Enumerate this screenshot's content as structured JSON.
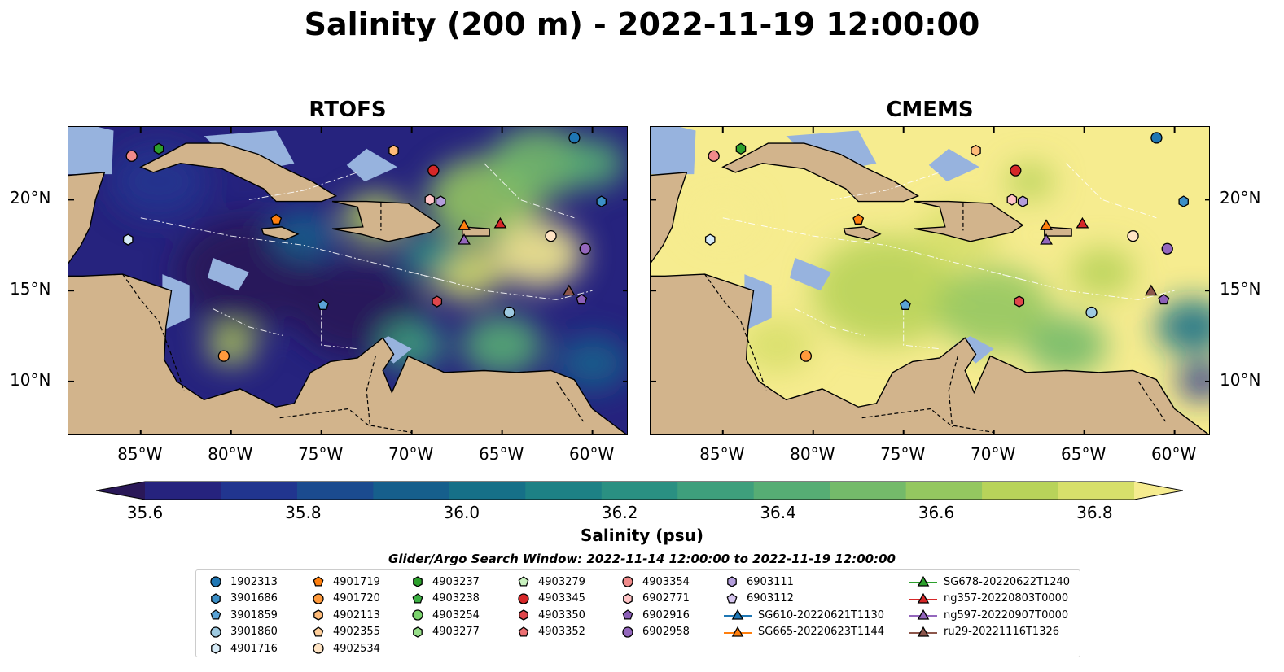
{
  "title": "Salinity (200 m) - 2022-11-19 12:00:00",
  "panels": [
    {
      "title": "RTOFS",
      "scheme": "rtofs"
    },
    {
      "title": "CMEMS",
      "scheme": "cmems"
    }
  ],
  "axes": {
    "lon_ticks": [
      "85°W",
      "80°W",
      "75°W",
      "70°W",
      "65°W",
      "60°W"
    ],
    "lon_values": [
      -85,
      -80,
      -75,
      -70,
      -65,
      -60
    ],
    "lat_ticks": [
      "20°N",
      "15°N",
      "10°N"
    ],
    "lat_values": [
      20,
      15,
      10
    ],
    "lon_range": [
      -89,
      -58
    ],
    "lat_range": [
      7,
      24
    ]
  },
  "colorbar": {
    "label": "Salinity (psu)",
    "ticks": [
      "35.6",
      "35.8",
      "36.0",
      "36.2",
      "36.4",
      "36.6",
      "36.8"
    ],
    "range": [
      35.55,
      36.9
    ],
    "step": 0.05,
    "extend": "both",
    "colors": [
      "#2a1858",
      "#26237e",
      "#21358f",
      "#1b4b8f",
      "#165f8c",
      "#167088",
      "#1d8185",
      "#2a9082",
      "#3e9f7c",
      "#56ad74",
      "#74ba6a",
      "#94c760",
      "#b8d35a",
      "#d7df6b",
      "#f6ec8f"
    ]
  },
  "colors": {
    "land": "#d2b48c",
    "shallow": "#97b3de",
    "coast": "#000000"
  },
  "legend": {
    "title": "Glider/Argo Search Window: 2022-11-14 12:00:00 to 2022-11-19 12:00:00",
    "columns": [
      [
        {
          "label": "1902313",
          "marker": "circle",
          "color": "#1f77b4"
        },
        {
          "label": "3901686",
          "marker": "hexagon",
          "color": "#3b8fc7"
        },
        {
          "label": "3901859",
          "marker": "pentagon",
          "color": "#5aa3d6"
        },
        {
          "label": "3901860",
          "marker": "circle",
          "color": "#9ecae1"
        },
        {
          "label": "4901716",
          "marker": "hexagon",
          "color": "#d6ebf7"
        }
      ],
      [
        {
          "label": "4901719",
          "marker": "pentagon",
          "color": "#ff7f0e"
        },
        {
          "label": "4901720",
          "marker": "circle",
          "color": "#ff9a3c"
        },
        {
          "label": "4902113",
          "marker": "hexagon",
          "color": "#ffbb78"
        },
        {
          "label": "4902355",
          "marker": "pentagon",
          "color": "#ffcf9b"
        },
        {
          "label": "4902534",
          "marker": "circle",
          "color": "#ffe4c4"
        }
      ],
      [
        {
          "label": "4903237",
          "marker": "hexagon",
          "color": "#2ca02c"
        },
        {
          "label": "4903238",
          "marker": "pentagon",
          "color": "#3cb043"
        },
        {
          "label": "4903254",
          "marker": "circle",
          "color": "#7bd36d"
        },
        {
          "label": "4903277",
          "marker": "hexagon",
          "color": "#98df8a"
        }
      ],
      [
        {
          "label": "4903279",
          "marker": "pentagon",
          "color": "#c9f2bf"
        },
        {
          "label": "4903345",
          "marker": "circle",
          "color": "#d62728"
        },
        {
          "label": "4903350",
          "marker": "hexagon",
          "color": "#e0474c"
        },
        {
          "label": "4903352",
          "marker": "pentagon",
          "color": "#ec6f72"
        }
      ],
      [
        {
          "label": "4903354",
          "marker": "circle",
          "color": "#f08a8a"
        },
        {
          "label": "6902771",
          "marker": "hexagon",
          "color": "#ffc4c6"
        },
        {
          "label": "6902916",
          "marker": "pentagon",
          "color": "#8c5fb8"
        },
        {
          "label": "6902958",
          "marker": "circle",
          "color": "#9467bd"
        }
      ],
      [
        {
          "label": "6903111",
          "marker": "hexagon",
          "color": "#b39ddb"
        },
        {
          "label": "6903112",
          "marker": "pentagon",
          "color": "#d7c6f0"
        },
        {
          "label": "SG610-20220621T1130",
          "marker": "triangle",
          "color": "#1f77b4",
          "line": true
        },
        {
          "label": "SG665-20220623T1144",
          "marker": "triangle",
          "color": "#ff7f0e",
          "line": true
        }
      ],
      [
        {
          "label": "SG678-20220622T1240",
          "marker": "triangle",
          "color": "#2ca02c",
          "line": true
        },
        {
          "label": "ng357-20220803T0000",
          "marker": "triangle",
          "color": "#d62728",
          "line": true
        },
        {
          "label": "ng597-20220907T0000",
          "marker": "triangle",
          "color": "#9467bd",
          "line": true
        },
        {
          "label": "ru29-20221116T1326",
          "marker": "triangle",
          "color": "#8c564b",
          "line": true
        }
      ]
    ]
  },
  "markers": [
    {
      "lon": -85.5,
      "lat": 22.4,
      "marker": "circle",
      "color": "#f08a8a"
    },
    {
      "lon": -84.0,
      "lat": 22.8,
      "marker": "hexagon",
      "color": "#2ca02c"
    },
    {
      "lon": -71.0,
      "lat": 22.7,
      "marker": "hexagon",
      "color": "#ffbb78"
    },
    {
      "lon": -68.8,
      "lat": 21.6,
      "marker": "circle",
      "color": "#d62728"
    },
    {
      "lon": -61.0,
      "lat": 23.4,
      "marker": "circle",
      "color": "#1f77b4"
    },
    {
      "lon": -69.0,
      "lat": 20.0,
      "marker": "hexagon",
      "color": "#ffc4c6"
    },
    {
      "lon": -68.4,
      "lat": 19.9,
      "marker": "hexagon",
      "color": "#b39ddb"
    },
    {
      "lon": -59.5,
      "lat": 19.9,
      "marker": "hexagon",
      "color": "#3b8fc7"
    },
    {
      "lon": -77.5,
      "lat": 18.9,
      "marker": "pentagon",
      "color": "#ff7f0e"
    },
    {
      "lon": -85.7,
      "lat": 17.8,
      "marker": "hexagon",
      "color": "#d6ebf7"
    },
    {
      "lon": -62.3,
      "lat": 18.0,
      "marker": "circle",
      "color": "#ffe4c4"
    },
    {
      "lon": -60.4,
      "lat": 17.3,
      "marker": "circle",
      "color": "#9467bd"
    },
    {
      "lon": -74.9,
      "lat": 14.2,
      "marker": "pentagon",
      "color": "#5aa3d6"
    },
    {
      "lon": -68.6,
      "lat": 14.4,
      "marker": "hexagon",
      "color": "#e0474c"
    },
    {
      "lon": -64.6,
      "lat": 13.8,
      "marker": "circle",
      "color": "#9ecae1"
    },
    {
      "lon": -60.6,
      "lat": 14.5,
      "marker": "pentagon",
      "color": "#8c5fb8"
    },
    {
      "lon": -80.4,
      "lat": 11.4,
      "marker": "circle",
      "color": "#ff9a3c"
    },
    {
      "lon": -67.1,
      "lat": 18.6,
      "marker": "triangle",
      "color": "#ff7f0e"
    },
    {
      "lon": -65.1,
      "lat": 18.7,
      "marker": "triangle",
      "color": "#d62728"
    },
    {
      "lon": -67.1,
      "lat": 17.8,
      "marker": "triangle",
      "color": "#9467bd"
    },
    {
      "lon": -61.3,
      "lat": 15.0,
      "marker": "triangle",
      "color": "#8c564b"
    }
  ]
}
